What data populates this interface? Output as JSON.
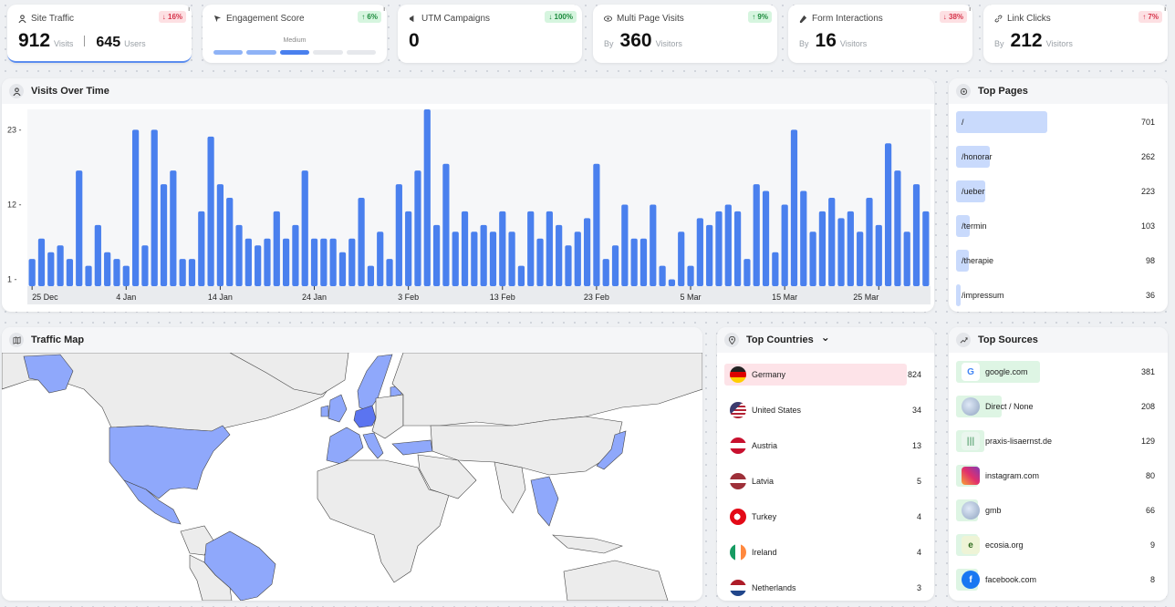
{
  "kpis": {
    "site_traffic": {
      "title": "Site Traffic",
      "badge": "↓ 16%",
      "visits": "912",
      "visits_unit": "Visits",
      "users": "645",
      "users_unit": "Users"
    },
    "engagement": {
      "title": "Engagement Score",
      "badge": "↑ 6%",
      "level": "Medium",
      "segments_filled": 3,
      "segments_total": 5
    },
    "utm": {
      "title": "UTM Campaigns",
      "badge": "↓ 100%",
      "value": "0"
    },
    "multi_page": {
      "title": "Multi Page Visits",
      "badge": "↑ 9%",
      "by": "By",
      "value": "360",
      "unit": "Visitors"
    },
    "form": {
      "title": "Form Interactions",
      "badge": "↓ 38%",
      "by": "By",
      "value": "16",
      "unit": "Visitors"
    },
    "link_clicks": {
      "title": "Link Clicks",
      "badge": "↑ 7%",
      "by": "By",
      "value": "212",
      "unit": "Visitors"
    }
  },
  "info_glyph": "i",
  "visits_panel": {
    "title": "Visits Over Time"
  },
  "chart_data": {
    "type": "bar",
    "title": "Visits Over Time",
    "y_ticks": [
      "1 -",
      "12 -",
      "23 -"
    ],
    "ylim": [
      0,
      26
    ],
    "x_tick_labels": [
      "25 Dec",
      "4 Jan",
      "14 Jan",
      "24 Jan",
      "3 Feb",
      "13 Feb",
      "23 Feb",
      "5 Mar",
      "15 Mar",
      "25 Mar"
    ],
    "x_tick_indices": [
      0,
      10,
      20,
      30,
      40,
      50,
      60,
      70,
      80,
      90
    ],
    "values": [
      4,
      7,
      5,
      6,
      4,
      17,
      3,
      9,
      5,
      4,
      3,
      23,
      6,
      23,
      15,
      17,
      4,
      4,
      11,
      22,
      15,
      13,
      9,
      7,
      6,
      7,
      11,
      7,
      9,
      17,
      7,
      7,
      7,
      5,
      7,
      13,
      3,
      8,
      4,
      15,
      11,
      17,
      26,
      9,
      18,
      8,
      11,
      8,
      9,
      8,
      11,
      8,
      3,
      11,
      7,
      11,
      9,
      6,
      8,
      10,
      18,
      4,
      6,
      12,
      7,
      7,
      12,
      3,
      1,
      8,
      3,
      10,
      9,
      11,
      12,
      11,
      4,
      15,
      14,
      5,
      12,
      23,
      14,
      8,
      11,
      13,
      10,
      11,
      8,
      13,
      9,
      21,
      17,
      8,
      15,
      11
    ],
    "bar_color": "#4a80ee",
    "grid": false
  },
  "top_pages": {
    "title": "Top Pages",
    "items": [
      {
        "label": "/",
        "value": "701",
        "n": 701
      },
      {
        "label": "/honorar",
        "value": "262",
        "n": 262
      },
      {
        "label": "/ueber",
        "value": "223",
        "n": 223
      },
      {
        "label": "/termin",
        "value": "103",
        "n": 103
      },
      {
        "label": "/therapie",
        "value": "98",
        "n": 98
      },
      {
        "label": "/impressum",
        "value": "36",
        "n": 36
      }
    ],
    "bar_color": "#c9dafc"
  },
  "traffic_map": {
    "title": "Traffic Map",
    "highlight_color": "#8fa8fb",
    "strong_color": "#5b74f0",
    "land_color": "#ececec"
  },
  "top_countries": {
    "title": "Top Countries",
    "dropdown_glyph": "⌄",
    "items": [
      {
        "label": "Germany",
        "value": "824",
        "flag": "de"
      },
      {
        "label": "United States",
        "value": "34",
        "flag": "us"
      },
      {
        "label": "Austria",
        "value": "13",
        "flag": "at"
      },
      {
        "label": "Latvia",
        "value": "5",
        "flag": "lv"
      },
      {
        "label": "Turkey",
        "value": "4",
        "flag": "tr"
      },
      {
        "label": "Ireland",
        "value": "4",
        "flag": "ie"
      },
      {
        "label": "Netherlands",
        "value": "3",
        "flag": "nl"
      }
    ],
    "highlight_color": "#fde3e8"
  },
  "top_sources": {
    "title": "Top Sources",
    "items": [
      {
        "label": "google.com",
        "value": "381",
        "n": 381,
        "icon": "google-icon",
        "glyph": "G"
      },
      {
        "label": "Direct / None",
        "value": "208",
        "n": 208,
        "icon": "globe-icon",
        "glyph": ""
      },
      {
        "label": "praxis-lisaernst.de",
        "value": "129",
        "n": 129,
        "icon": "site-icon",
        "glyph": "|||"
      },
      {
        "label": "instagram.com",
        "value": "80",
        "n": 80,
        "icon": "instagram-icon",
        "glyph": ""
      },
      {
        "label": "gmb",
        "value": "66",
        "n": 66,
        "icon": "globe-icon",
        "glyph": ""
      },
      {
        "label": "ecosia.org",
        "value": "9",
        "n": 9,
        "icon": "ecosia-icon",
        "glyph": "e"
      },
      {
        "label": "facebook.com",
        "value": "8",
        "n": 8,
        "icon": "facebook-icon",
        "glyph": "f"
      }
    ],
    "bar_color": "#def5e4"
  }
}
